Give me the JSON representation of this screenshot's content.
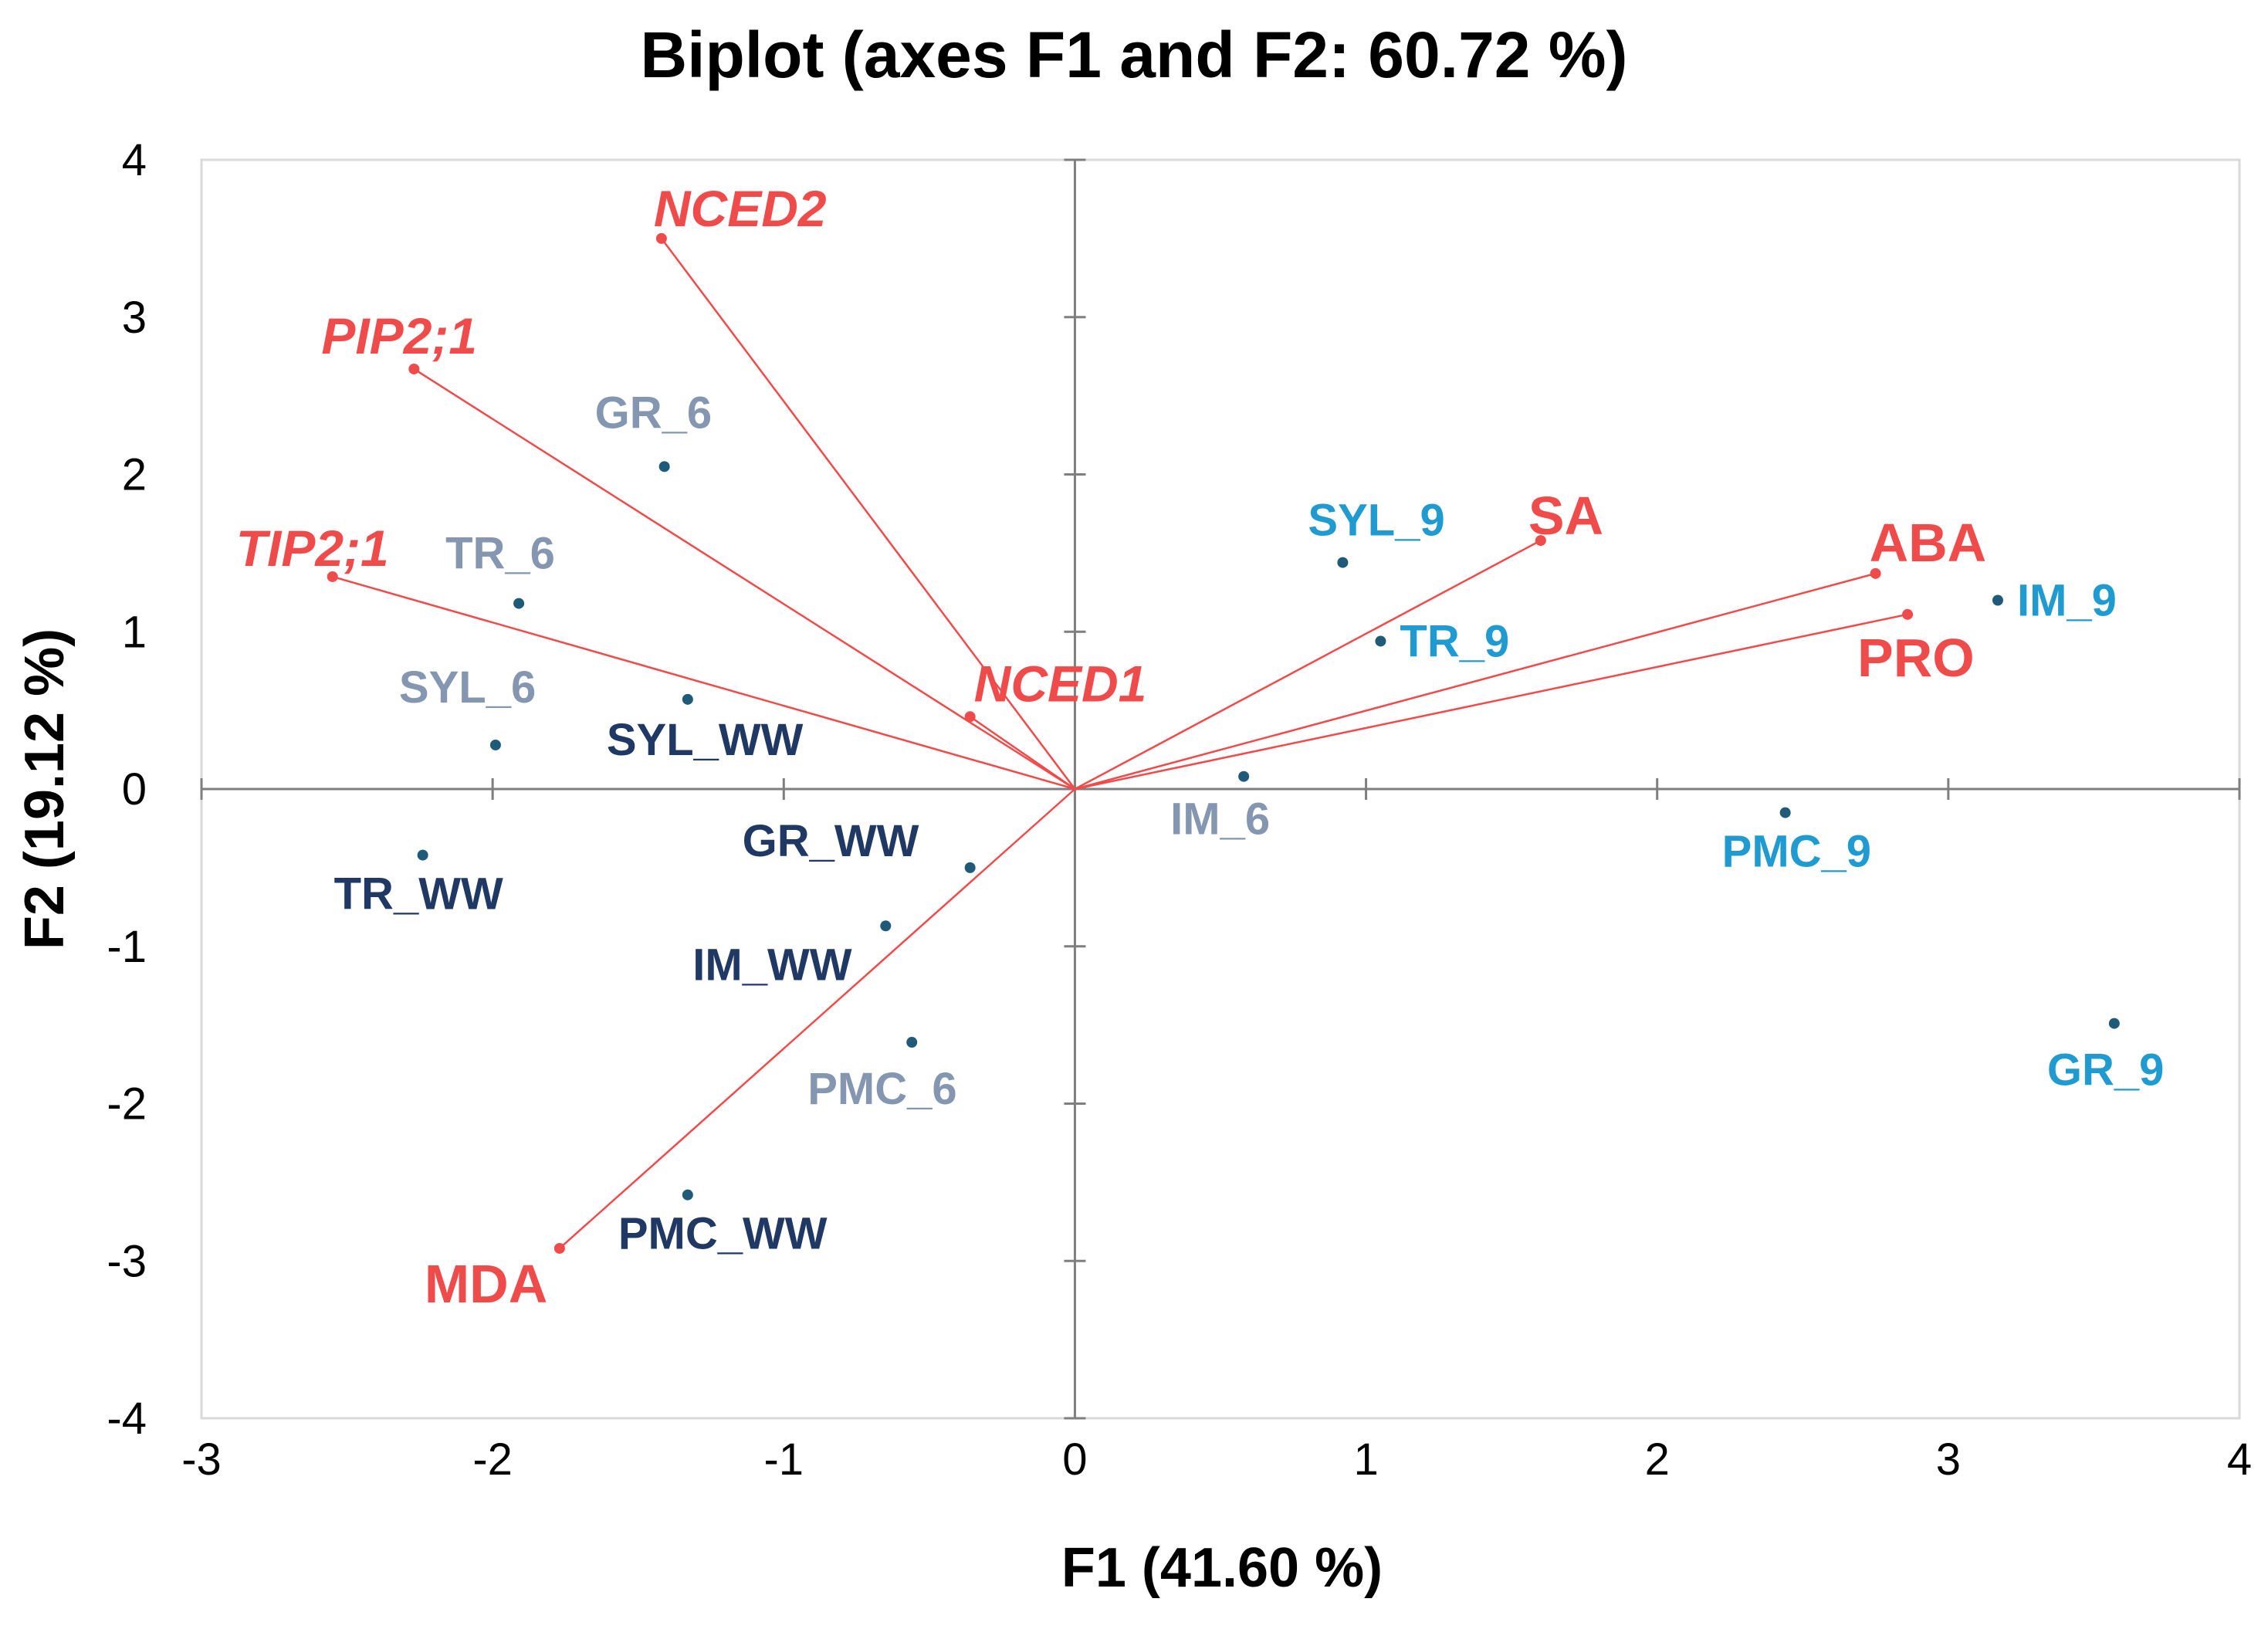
{
  "chart_data": {
    "type": "scatter",
    "title": "Biplot (axes F1 and F2: 60.72 %)",
    "xlabel": "F1 (41.60 %)",
    "ylabel": "F2 (19.12 %)",
    "xlim": [
      -3,
      4
    ],
    "ylim": [
      -4,
      4
    ],
    "xticks": [
      "-3",
      "-2",
      "-1",
      "0",
      "1",
      "2",
      "3",
      "4"
    ],
    "yticks": [
      "4",
      "3",
      "2",
      "1",
      "0",
      "-1",
      "-2",
      "-3",
      "-4"
    ],
    "grid": false,
    "colors": {
      "variables": "#f04b4b",
      "ww": "#1f3864",
      "day6": "#8496b0",
      "day9": "#1f9bd1",
      "marker": "#1f5a78",
      "axis": "#7f7f7f"
    },
    "variables": [
      {
        "name": "NCED2",
        "x": -1.42,
        "y": 3.5,
        "italic": true
      },
      {
        "name": "PIP2;1",
        "x": -2.27,
        "y": 2.67,
        "italic": true
      },
      {
        "name": "TIP2;1",
        "x": -2.55,
        "y": 1.35,
        "italic": true
      },
      {
        "name": "NCED1",
        "x": -0.36,
        "y": 0.46,
        "italic": true
      },
      {
        "name": "SA",
        "x": 1.6,
        "y": 1.58,
        "italic": false
      },
      {
        "name": "ABA",
        "x": 2.75,
        "y": 1.37,
        "italic": false
      },
      {
        "name": "PRO",
        "x": 2.86,
        "y": 1.11,
        "italic": false
      },
      {
        "name": "MDA",
        "x": -1.77,
        "y": -2.92,
        "italic": false
      }
    ],
    "observations": [
      {
        "name": "GR_6",
        "group": "day6",
        "x": -1.41,
        "y": 2.05
      },
      {
        "name": "TR_6",
        "group": "day6",
        "x": -1.91,
        "y": 1.18
      },
      {
        "name": "SYL_6",
        "group": "day6",
        "x": -1.99,
        "y": 0.28
      },
      {
        "name": "IM_6",
        "group": "day6",
        "x": 0.58,
        "y": 0.08
      },
      {
        "name": "PMC_6",
        "group": "day6",
        "x": -0.56,
        "y": -1.61
      },
      {
        "name": "SYL_WW",
        "group": "ww",
        "x": -1.33,
        "y": 0.57
      },
      {
        "name": "GR_WW",
        "group": "ww",
        "x": -0.36,
        "y": -0.5
      },
      {
        "name": "TR_WW",
        "group": "ww",
        "x": -2.24,
        "y": -0.42
      },
      {
        "name": "IM_WW",
        "group": "ww",
        "x": -0.65,
        "y": -0.87
      },
      {
        "name": "PMC_WW",
        "group": "ww",
        "x": -1.33,
        "y": -2.58
      },
      {
        "name": "SYL_9",
        "group": "day9",
        "x": 0.92,
        "y": 1.44
      },
      {
        "name": "TR_9",
        "group": "day9",
        "x": 1.05,
        "y": 0.94
      },
      {
        "name": "IM_9",
        "group": "day9",
        "x": 3.17,
        "y": 1.2
      },
      {
        "name": "PMC_9",
        "group": "day9",
        "x": 2.44,
        "y": -0.15
      },
      {
        "name": "GR_9",
        "group": "day9",
        "x": 3.57,
        "y": -1.49
      }
    ]
  }
}
